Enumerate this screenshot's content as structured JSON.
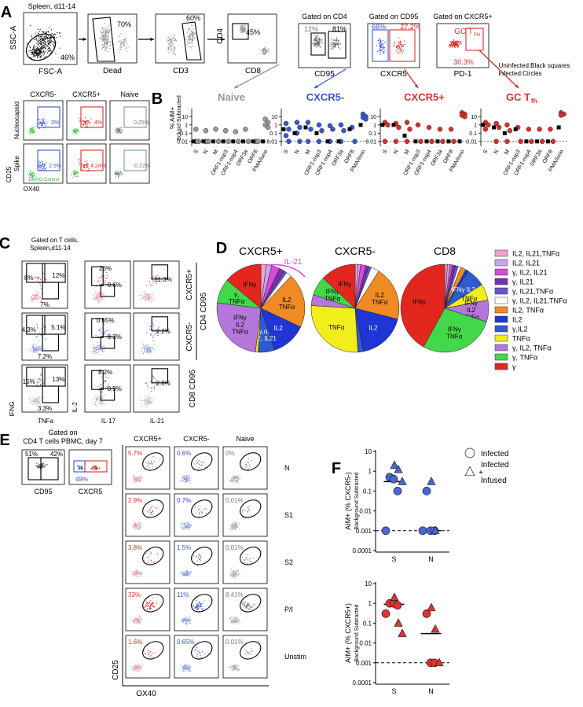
{
  "panel_a": {
    "label": "A",
    "gating": [
      {
        "title": "Spleen, d11-14",
        "y_label": "SSC-A",
        "x_label": "FSC-A",
        "gate_labels": [
          "46%"
        ]
      },
      {
        "x_label": "Dead",
        "gate_labels": [
          "70%"
        ]
      },
      {
        "x_label": "CD3",
        "gate_labels": [
          "60%"
        ]
      },
      {
        "y_label": "CD4",
        "x_label": "CD8",
        "gate_labels": [
          "45%"
        ]
      },
      {
        "title": "Gated on CD4",
        "x_label": "CD95",
        "gate_labels": [
          "12%",
          "81%"
        ]
      },
      {
        "title": "Gated on CD95",
        "x_label": "CXCR5",
        "gate_labels": [
          "66%",
          "27.2%"
        ]
      },
      {
        "title": "Gated on CXCR5+",
        "x_label": "PD-1",
        "gate_labels": [
          "30.3%"
        ],
        "gate_name": [
          "GC T",
          "FH"
        ]
      }
    ],
    "aim": {
      "columns": [
        "CXCR5-",
        "CXCR5+",
        "Naive"
      ],
      "rows": [
        "Nucleocapsid",
        "Spike"
      ],
      "y_label": "CD25",
      "x_label": "OX40",
      "gate_labels": [
        [
          "3%",
          "4%",
          "0.25%"
        ],
        [
          "2.5%",
          "4.24%",
          "-0.22%"
        ]
      ],
      "control": "DMSO Control"
    }
  },
  "panel_b": {
    "label": "B",
    "y_label": [
      "% AIM+",
      "Bckgrd Subtracted"
    ],
    "note": [
      "Uninfected:Black squares",
      "Infected:Circles"
    ],
    "categories": [
      "S",
      "N",
      "M",
      "ORF1-nsp3",
      "ORF1-nsp4",
      "ORF3a",
      "ORF8",
      "PMA/Iono"
    ],
    "log": true,
    "ylim": [
      0.004,
      40
    ],
    "yticks": [
      10,
      1,
      0.1,
      0.01
    ],
    "threshold": 0.01,
    "plots": [
      {
        "title": "Naive",
        "color": "#9a9a9a",
        "infected": [
          [
            0.3,
            0.01,
            0.01
          ],
          [
            0.2,
            0.01,
            0.01
          ],
          [
            0.3,
            0.01
          ],
          [
            0.2,
            0.01
          ],
          [
            0.15,
            0.01
          ],
          [
            0.3,
            0.01
          ],
          [
            0.01,
            0.01
          ],
          [
            5,
            2,
            1,
            0.5
          ]
        ],
        "uninfected": [
          0.01,
          0.01,
          0.01,
          0.01,
          0.01,
          0.01,
          0.01,
          0.01
        ]
      },
      {
        "title": "CXCR5-",
        "color": "#3b55d0",
        "infected": [
          [
            1.5,
            0.3,
            0.05,
            0.01
          ],
          [
            2,
            0.5,
            0.1,
            0.01
          ],
          [
            2,
            0.3,
            0.01
          ],
          [
            1,
            0.2,
            0.01
          ],
          [
            0.8,
            0.3,
            0.01
          ],
          [
            1,
            0.2,
            0.01
          ],
          [
            0.5,
            0.01
          ],
          [
            20,
            10,
            8,
            5
          ]
        ],
        "uninfected": [
          0.3,
          0.1,
          0.5,
          0.1,
          0.01,
          0.01,
          0.3,
          1
        ]
      },
      {
        "title": "CXCR5+",
        "color": "#d8302a",
        "infected": [
          [
            2,
            1,
            0.01
          ],
          [
            1.5,
            0.5,
            0.01
          ],
          [
            2,
            0.3,
            0.01
          ],
          [
            1,
            0.01
          ],
          [
            0.5,
            0.01
          ],
          [
            0.3,
            0.01
          ],
          [
            0.3,
            0.01
          ],
          [
            30,
            20,
            15,
            10
          ]
        ],
        "uninfected": [
          1,
          1,
          0.05,
          0.01,
          0.01,
          0.01,
          0.01,
          0.01
        ]
      },
      {
        "title": "GC T",
        "title_sub": "fh",
        "color": "#d8302a",
        "infected": [
          [
            2,
            1,
            0.3
          ],
          [
            1.5,
            0.5,
            0.01
          ],
          [
            1,
            0.2,
            0.01
          ],
          [
            0.5,
            0.01
          ],
          [
            0.3,
            0.01
          ],
          [
            0.3,
            0.01
          ],
          [
            0.3,
            0.01
          ],
          [
            30,
            20,
            15
          ]
        ],
        "uninfected": [
          1,
          0.5,
          0.1,
          0.3,
          0.01,
          0.01,
          0.01,
          0.5
        ]
      }
    ]
  },
  "panel_c": {
    "label": "C",
    "gate_note": [
      "Gated on T cells,",
      "Spleen,d11-14"
    ],
    "x_labels": [
      "TNFa",
      "IL-17",
      "IL-21"
    ],
    "y_labels": [
      "IFNG",
      "IL-2"
    ],
    "row_labels": [
      "CXCR5+",
      "CXCR5-"
    ],
    "group_labels": [
      "CD4 CD95",
      "CD8 CD95"
    ],
    "gate_labels": [
      [
        [
          "8%",
          "12%",
          "7%"
        ],
        [
          "26%",
          "0.6%"
        ],
        [
          "11.3%"
        ]
      ],
      [
        [
          "4.3%",
          "5.1%",
          "7.2%"
        ],
        [
          "0.65%",
          "9.3%"
        ],
        [
          "2.2%"
        ]
      ],
      [
        [
          "15%",
          "13%",
          "3.3%"
        ],
        [
          "8.2%",
          "0.9%"
        ],
        [
          "2.8%"
        ]
      ]
    ]
  },
  "panel_d": {
    "label": "D",
    "annotation": "IL-21",
    "legend": [
      "IL2, IL21,TNFα",
      "IL2, IL21",
      "γ, IL2, IL21",
      "γ, IL21",
      "γ, IL21,TNFα",
      "γ, IL2, IL21,TNFα",
      "IL2, TNFα",
      "IL2",
      "γ,IL2",
      "TNFα",
      "γ, IL2, TNFα",
      "γ, TNFα",
      "γ"
    ],
    "colors": [
      "#f59fd0",
      "#c9a6ef",
      "#d84ad8",
      "#7a2fb0",
      "#6655cc",
      "#ffffff",
      "#f08a22",
      "#1f35d6",
      "#2f5bd0",
      "#f2ee1c",
      "#b577db",
      "#43d84a",
      "#e3261e"
    ],
    "pies": [
      {
        "title": "CXCR5+",
        "values": [
          2,
          2,
          3,
          2,
          1,
          2,
          20,
          13,
          6,
          1,
          25,
          9,
          14
        ],
        "slice_labels": [
          null,
          null,
          null,
          null,
          null,
          null,
          [
            "IL2",
            "TNFα"
          ],
          [
            "IL2"
          ],
          [
            "γ,α,",
            "IL2, IL21"
          ],
          null,
          [
            "IFNγ",
            "IL2",
            "TNFα"
          ],
          [
            "γ,",
            "TNFα"
          ],
          [
            "IFNγ"
          ]
        ]
      },
      {
        "title": "CXCR5-",
        "values": [
          1,
          1,
          2,
          1,
          1,
          3,
          20,
          18,
          2,
          27,
          4,
          7,
          13
        ],
        "slice_labels": [
          null,
          null,
          null,
          null,
          null,
          null,
          [
            "IL2",
            "TNFα"
          ],
          [
            "IL2"
          ],
          null,
          [
            "TNFα"
          ],
          null,
          [
            "IFNγ",
            "TNFα"
          ],
          [
            "IFNγ"
          ]
        ]
      },
      {
        "title": "CD8",
        "values": [
          1,
          1,
          1,
          1,
          1,
          1,
          2,
          1,
          7,
          6,
          8,
          28,
          42
        ],
        "slice_labels": [
          null,
          null,
          null,
          null,
          null,
          null,
          null,
          null,
          [
            "IFNγ IL2"
          ],
          [
            "TNFα"
          ],
          [
            "IFNγ",
            "IL2",
            "TNFα"
          ],
          [
            "IFNγ",
            "TNFα"
          ],
          [
            "IFNγ"
          ]
        ]
      }
    ]
  },
  "panel_e": {
    "label": "E",
    "gate_note": [
      "Gated on",
      "CD4 T cells PBMC, day 7"
    ],
    "pre_gates": [
      {
        "x_label": "CD95",
        "gate_labels": [
          "51%",
          "42%"
        ]
      },
      {
        "x_label": "CXCR5",
        "gate_labels": [
          "49%"
        ]
      }
    ],
    "columns": [
      "CXCR5+",
      "CXCR5-",
      "Naive"
    ],
    "rows": [
      "N",
      "S1",
      "S2",
      "P/I",
      "Unstim"
    ],
    "gate_labels": [
      [
        "5.7%",
        "0.6%",
        "0%"
      ],
      [
        "2.9%",
        "0.7%",
        "0.01%"
      ],
      [
        "3.8%",
        "1.5%",
        "0.01%"
      ],
      [
        "33%",
        "11%",
        "8.41%"
      ],
      [
        "1.6%",
        "0.65%",
        "0.01%"
      ]
    ],
    "y_label": "CD25",
    "x_label": "OX40"
  },
  "panel_f": {
    "label": "F",
    "legend": [
      {
        "marker": "circle",
        "label": [
          "Infected"
        ]
      },
      {
        "marker": "triangle",
        "label": [
          "Infected",
          "+",
          "Infused"
        ]
      }
    ],
    "categories": [
      "S",
      "N"
    ],
    "log": true,
    "ylim": [
      0.0001,
      10
    ],
    "yticks": [
      10,
      1,
      0.1,
      0.01,
      0.001,
      0.0001
    ],
    "threshold": 0.001,
    "plots": [
      {
        "y_label": [
          "AIM+ (% CXCR5-)",
          "Background Subtracted"
        ],
        "color": "#4a68d4",
        "series": [
          {
            "marker": "circle",
            "x": [
              "S",
              "S",
              "S",
              "S",
              "N",
              "N",
              "N",
              "N"
            ],
            "values": [
              0.5,
              0.4,
              0.1,
              0.001,
              0.1,
              0.001,
              0.001,
              0.001
            ]
          },
          {
            "marker": "triangle",
            "x": [
              "S",
              "S",
              "S",
              "N",
              "N"
            ],
            "values": [
              2,
              1.2,
              0.3,
              0.3,
              0.001
            ]
          }
        ],
        "medians": [
          0.3,
          0.001
        ]
      },
      {
        "y_label": [
          "AIM+ (% CXCR5+)",
          "Background Subtracted"
        ],
        "color": "#e0332c",
        "series": [
          {
            "marker": "circle",
            "x": [
              "S",
              "S",
              "S",
              "S",
              "N",
              "N",
              "N"
            ],
            "values": [
              1,
              1,
              0.8,
              0.3,
              0.3,
              0.001,
              0.001
            ]
          },
          {
            "marker": "triangle",
            "x": [
              "S",
              "S",
              "S",
              "N",
              "N",
              "N"
            ],
            "values": [
              2,
              0.1,
              0.03,
              0.6,
              0.05,
              0.001
            ]
          }
        ],
        "medians": [
          0.9,
          0.03
        ]
      }
    ]
  }
}
